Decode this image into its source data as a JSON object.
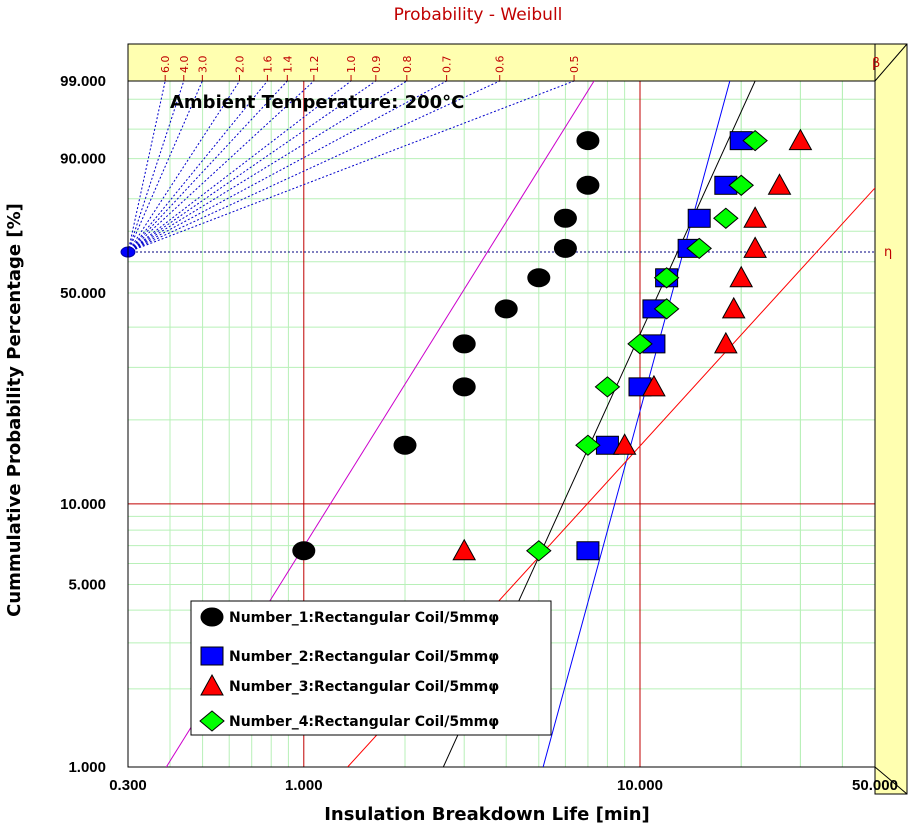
{
  "chart_data": {
    "type": "scatter",
    "title": "Probability - Weibull",
    "xlabel": "Insulation Breakdown Life [min]",
    "ylabel": "Cummulative Probability Percentage [%]",
    "x_scale": "log",
    "y_scale": "weibull",
    "xlim": [
      0.3,
      50
    ],
    "ylim": [
      1,
      99
    ],
    "x_ticks": [
      "0.300",
      "1.000",
      "10.000",
      "50.000"
    ],
    "y_ticks": [
      "1.000",
      "5.000",
      "10.000",
      "50.000",
      "90.000",
      "99.000"
    ],
    "grid": true,
    "annotation": "Ambient Temperature: 200°C",
    "beta_axis_symbol": "β",
    "eta_symbol": "η",
    "beta_ticks": [
      "6.0",
      "4.0",
      "3.0",
      "2.0",
      "1.6",
      "1.4",
      "1.2",
      "1.0",
      "0.9",
      "0.8",
      "0.7",
      "0.6",
      "0.5"
    ],
    "legend_position": "bottom-left",
    "series": [
      {
        "name": "Number_1:Rectangular Coil/5mmφ",
        "marker": "ellipse",
        "color": "#000000",
        "points": [
          [
            1.0,
            6.7
          ],
          [
            2.0,
            16.3
          ],
          [
            3.0,
            25.9
          ],
          [
            3.0,
            35.6
          ],
          [
            4.0,
            45.2
          ],
          [
            5.0,
            54.8
          ],
          [
            6.0,
            64.4
          ],
          [
            6.0,
            74.1
          ],
          [
            7.0,
            83.7
          ],
          [
            7.0,
            93.3
          ]
        ],
        "fit_line": [
          [
            0.39,
            1.0
          ],
          [
            7.3,
            99.0
          ]
        ],
        "fit_color": "#cc00cc"
      },
      {
        "name": "Number_2:Rectangular Coil/5mmφ",
        "marker": "square",
        "color": "#0000ff",
        "points": [
          [
            7.0,
            6.7
          ],
          [
            8.0,
            16.3
          ],
          [
            10.0,
            25.9
          ],
          [
            11.0,
            35.6
          ],
          [
            11.0,
            45.2
          ],
          [
            12.0,
            54.8
          ],
          [
            14.0,
            64.4
          ],
          [
            15.0,
            74.1
          ],
          [
            18.0,
            83.7
          ],
          [
            20.0,
            93.3
          ]
        ],
        "fit_line": [
          [
            5.15,
            1.0
          ],
          [
            18.5,
            99.0
          ]
        ],
        "fit_color": "#0000ff"
      },
      {
        "name": "Number_3:Rectangular Coil/5mmφ",
        "marker": "triangle",
        "color": "#ff0000",
        "points": [
          [
            3.0,
            6.7
          ],
          [
            9.0,
            16.3
          ],
          [
            11.0,
            25.9
          ],
          [
            18.0,
            35.6
          ],
          [
            19.0,
            45.2
          ],
          [
            20.0,
            54.8
          ],
          [
            22.0,
            64.4
          ],
          [
            22.0,
            74.1
          ],
          [
            26.0,
            83.7
          ],
          [
            30.0,
            93.3
          ]
        ],
        "fit_line": [
          [
            1.35,
            1.0
          ],
          [
            50.0,
            83.0
          ]
        ],
        "fit_color": "#ff0000"
      },
      {
        "name": "Number_4:Rectangular Coil/5mmφ",
        "marker": "diamond",
        "color": "#00ff00",
        "points": [
          [
            5.0,
            6.7
          ],
          [
            7.0,
            16.3
          ],
          [
            8.0,
            25.9
          ],
          [
            10.0,
            35.6
          ],
          [
            12.0,
            45.2
          ],
          [
            12.0,
            54.8
          ],
          [
            15.0,
            64.4
          ],
          [
            18.0,
            74.1
          ],
          [
            20.0,
            83.7
          ],
          [
            22.0,
            93.3
          ]
        ],
        "fit_line": [
          [
            2.6,
            1.0
          ],
          [
            22.0,
            99.0
          ]
        ],
        "fit_color": "#000000"
      }
    ]
  }
}
